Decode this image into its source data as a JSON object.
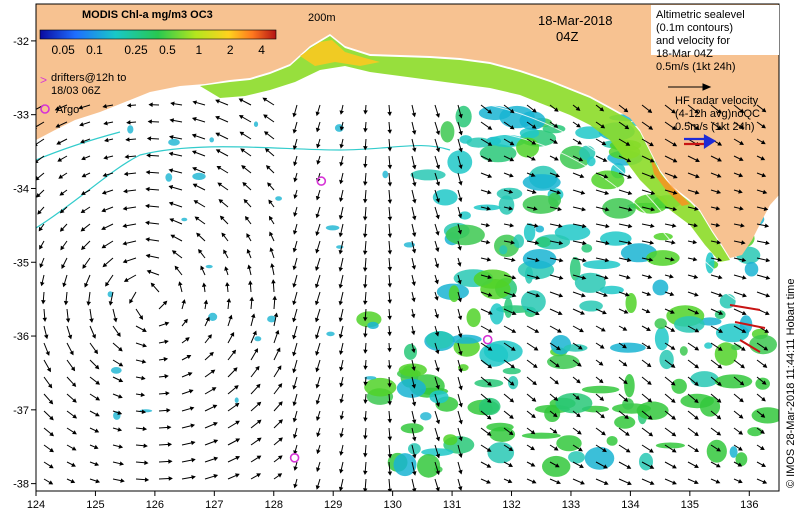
{
  "map": {
    "extent": {
      "lon": [
        124,
        136.5
      ],
      "lat": [
        -38.1,
        -31.5
      ]
    },
    "x_ticks": [
      "124",
      "125",
      "126",
      "127",
      "128",
      "129",
      "130",
      "131",
      "132",
      "133",
      "134",
      "135",
      "136"
    ],
    "y_ticks": [
      "-32",
      "-33",
      "-34",
      "-35",
      "-36",
      "-37",
      "-38"
    ],
    "contour_label": "200m",
    "date": "18-Mar-2018",
    "time": "04Z",
    "credit": "© IMOS 28-Mar-2018 11:44:11 Hobart time"
  },
  "colorbar": {
    "title": "MODIS Chl-a mg/m3 OC3",
    "ticks": [
      "0.05",
      "0.1",
      "0.25",
      "0.5",
      "1",
      "2",
      "4"
    ]
  },
  "legend": {
    "drifters_line1": "drifters@12h to",
    "drifters_line2": "18/03 06Z",
    "argo": "Argo",
    "alt_line1": "Altimetric sealevel",
    "alt_line2": "(0.1m contours)",
    "alt_line3": "and velocity for",
    "alt_line4": "18-Mar 04Z",
    "alt_line5": "0.5m/s (1kt 24h)",
    "hf_line1": "HF radar velocity",
    "hf_line2": "(4-12h avg)noQC",
    "hf_line3": "0.5m/s (1kt 24h)"
  },
  "argo_floats": [
    {
      "lon": 128.8,
      "lat": -33.9
    },
    {
      "lon": 131.6,
      "lat": -36.05
    },
    {
      "lon": 128.35,
      "lat": -37.65
    }
  ],
  "colors": {
    "land": "#f7c291",
    "argo": "#d633d6",
    "hf_radar": "#1e2bd6",
    "contour": "#33cccc"
  }
}
